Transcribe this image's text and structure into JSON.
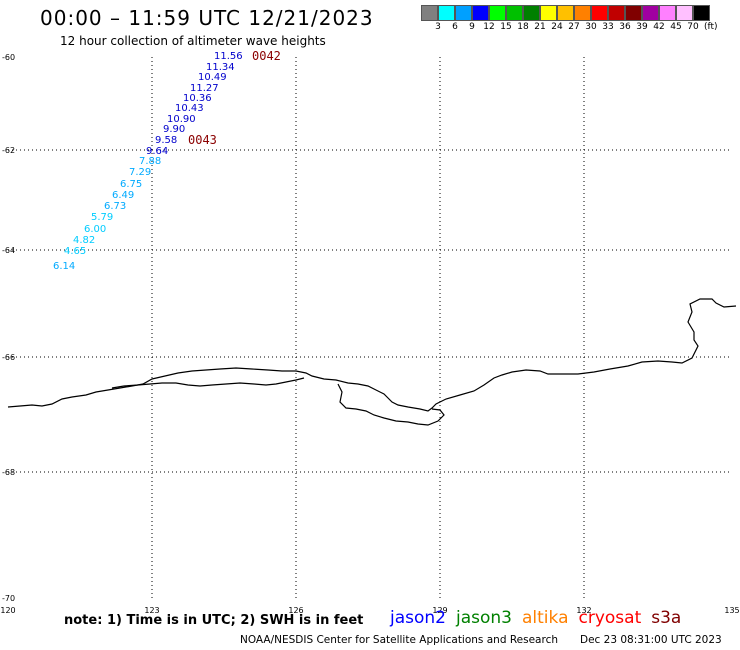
{
  "header": {
    "title": "00:00 – 11:59 UTC 12/21/2023",
    "subtitle": "12 hour collection of altimeter wave heights"
  },
  "colorbar": {
    "swatches": [
      "#808080",
      "#00ffff",
      "#00a0ff",
      "#0000ff",
      "#00ff00",
      "#00c000",
      "#008000",
      "#ffff00",
      "#ffc000",
      "#ff8000",
      "#ff0000",
      "#c00000",
      "#800000",
      "#a000a0",
      "#ff80ff",
      "#ffc0ff",
      "#000000"
    ],
    "labels": [
      "3",
      "6",
      "9",
      "12",
      "15",
      "18",
      "21",
      "24",
      "27",
      "30",
      "33",
      "36",
      "39",
      "42",
      "45",
      "70"
    ],
    "unit": "(ft)"
  },
  "axes": {
    "lat_labels": [
      "-60",
      "-62",
      "-64",
      "-66",
      "-68",
      "-70"
    ],
    "lon_labels": [
      "120",
      "123",
      "126",
      "129",
      "132",
      "135"
    ]
  },
  "orbits": [
    {
      "label": "0042",
      "color": "#8b0000"
    },
    {
      "label": "0043",
      "color": "#8b0000"
    }
  ],
  "wave_points": [
    {
      "value": "11.56",
      "color": "#0000cc"
    },
    {
      "value": "11.34",
      "color": "#0000cc"
    },
    {
      "value": "10.49",
      "color": "#0000cc"
    },
    {
      "value": "11.27",
      "color": "#0000cc"
    },
    {
      "value": "10.36",
      "color": "#0000cc"
    },
    {
      "value": "10.43",
      "color": "#0000cc"
    },
    {
      "value": "10.90",
      "color": "#0000cc"
    },
    {
      "value": "9.90",
      "color": "#0000cc"
    },
    {
      "value": "9.58",
      "color": "#0000cc"
    },
    {
      "value": "9.64",
      "color": "#0000cc"
    },
    {
      "value": "7.88",
      "color": "#00aaff"
    },
    {
      "value": "7.29",
      "color": "#00aaff"
    },
    {
      "value": "6.75",
      "color": "#00aaff"
    },
    {
      "value": "6.49",
      "color": "#00aaff"
    },
    {
      "value": "6.73",
      "color": "#00aaff"
    },
    {
      "value": "5.79",
      "color": "#00ccff"
    },
    {
      "value": "6.00",
      "color": "#00ccff"
    },
    {
      "value": "4.82",
      "color": "#00ccff"
    },
    {
      "value": "4.65",
      "color": "#00ccff"
    },
    {
      "value": "6.14",
      "color": "#00aaff"
    }
  ],
  "legend": [
    {
      "name": "jason2",
      "color": "#0000ff"
    },
    {
      "name": "jason3",
      "color": "#008000"
    },
    {
      "name": "altika",
      "color": "#ff8000"
    },
    {
      "name": "cryosat",
      "color": "#ff0000"
    },
    {
      "name": "s3a",
      "color": "#800000"
    }
  ],
  "footer": {
    "note": "note: 1) Time is in UTC; 2) SWH is in feet",
    "credit": "NOAA/NESDIS Center for Satellite Applications and Research",
    "date": "Dec 23 08:31:00 UTC 2023"
  }
}
